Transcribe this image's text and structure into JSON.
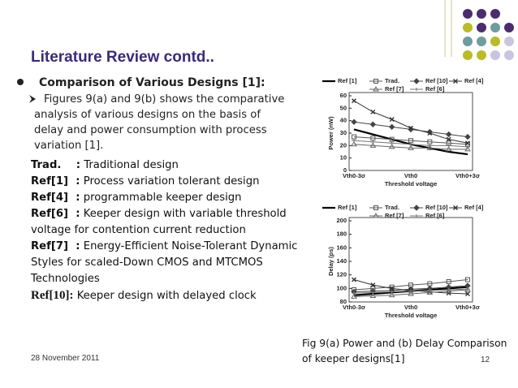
{
  "slide": {
    "title": "Literature Review contd..",
    "bullet": "Comparison of Various Designs [1]:",
    "sub_bullet": "Figures 9(a) and 9(b) shows the comparative analysis of various designs on the basis of delay and power consumption with process variation [1].",
    "definitions": [
      {
        "term": "Trad.    :",
        "text": "Traditional design"
      },
      {
        "term": "Ref[1]  :",
        "text": "Process variation tolerant design"
      },
      {
        "term": "Ref[4]  :",
        "text": "programmable keeper design"
      },
      {
        "term": "Ref[6]  :",
        "text": "Keeper design with variable threshold voltage for  contention current reduction"
      },
      {
        "term": "Ref[7]  :",
        "text": "Energy-Efficient Noise-Tolerant Dynamic Styles for scaled-Down CMOS and MTCMOS Technologies"
      },
      {
        "term": "Ref[10]:",
        "text": "Keeper design with delayed clock"
      }
    ],
    "caption": "Fig 9(a) Power and (b) Delay  Comparison of keeper designs[1]",
    "date": "28 November 2011",
    "page": "12"
  },
  "chart_data": [
    {
      "type": "line",
      "y_label": "Power (nW)",
      "x_label": "Threshold voltage",
      "categories": [
        "Vth0-3σ",
        null,
        null,
        "Vth0",
        null,
        null,
        "Vth0+3σ"
      ],
      "ylim": [
        0,
        60
      ],
      "yticks": [
        0,
        10,
        20,
        30,
        40,
        50,
        60
      ],
      "series": [
        {
          "name": "Ref [1]",
          "color": "#000000",
          "marker": "none",
          "values": [
            33,
            29,
            25,
            21,
            18,
            15,
            13
          ]
        },
        {
          "name": "Trad.",
          "color": "#555555",
          "marker": "square",
          "values": [
            27,
            26,
            25,
            24,
            23,
            22,
            21
          ]
        },
        {
          "name": "Ref [10]",
          "color": "#444444",
          "marker": "diamond",
          "values": [
            39,
            37,
            35,
            33,
            31,
            29,
            27
          ]
        },
        {
          "name": "Ref [4]",
          "color": "#333333",
          "marker": "x",
          "values": [
            56,
            47,
            41,
            34,
            30,
            25,
            22
          ]
        },
        {
          "name": "Ref [7]",
          "color": "#666666",
          "marker": "triangle",
          "values": [
            21,
            20,
            19,
            18,
            18,
            17,
            17
          ]
        },
        {
          "name": "Ref [6]",
          "color": "#777777",
          "marker": "dash",
          "values": [
            24,
            23,
            22,
            21,
            20,
            20,
            19
          ]
        }
      ]
    },
    {
      "type": "line",
      "y_label": "Delay (ps)",
      "x_label": "Threshold voltage",
      "categories": [
        "Vth0-3σ",
        null,
        null,
        "Vth0",
        null,
        null,
        "Vth0+3σ"
      ],
      "ylim": [
        80,
        200
      ],
      "yticks": [
        80,
        100,
        120,
        140,
        160,
        180,
        200
      ],
      "series": [
        {
          "name": "Ref [1]",
          "color": "#000000",
          "marker": "none",
          "values": [
            90,
            92,
            94,
            96,
            98,
            100,
            102
          ]
        },
        {
          "name": "Trad.",
          "color": "#555555",
          "marker": "square",
          "values": [
            98,
            100,
            102,
            105,
            107,
            110,
            113
          ]
        },
        {
          "name": "Ref [10]",
          "color": "#444444",
          "marker": "diamond",
          "values": [
            95,
            96,
            97,
            99,
            100,
            102,
            104
          ]
        },
        {
          "name": "Ref [4]",
          "color": "#333333",
          "marker": "x",
          "values": [
            113,
            105,
            100,
            97,
            95,
            93,
            92
          ]
        },
        {
          "name": "Ref [7]",
          "color": "#666666",
          "marker": "triangle",
          "values": [
            88,
            89,
            90,
            92,
            94,
            96,
            98
          ]
        },
        {
          "name": "Ref [6]",
          "color": "#777777",
          "marker": "dash",
          "values": [
            93,
            94,
            95,
            96,
            97,
            98,
            99
          ]
        }
      ]
    }
  ]
}
